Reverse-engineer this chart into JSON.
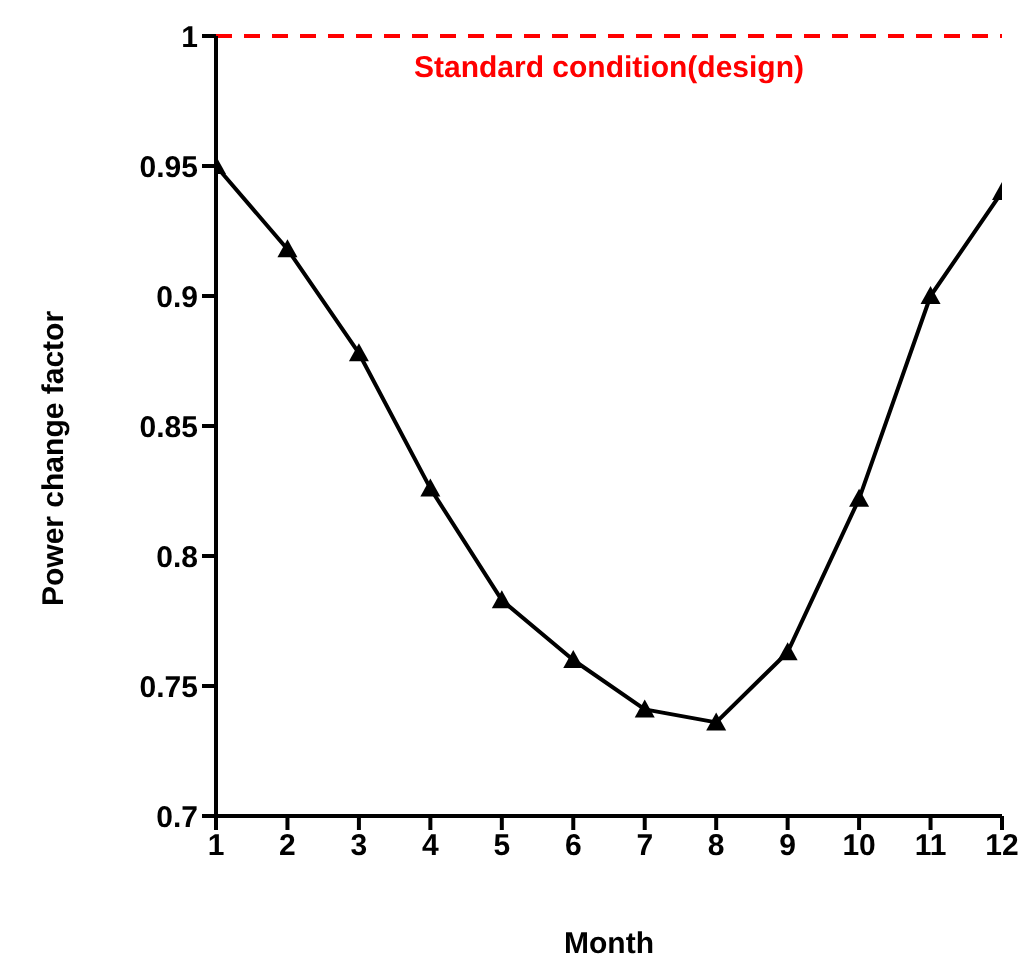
{
  "chart_data": {
    "type": "line",
    "xlabel": "Month",
    "ylabel": "Power change factor",
    "x": [
      1,
      2,
      3,
      4,
      5,
      6,
      7,
      8,
      9,
      10,
      11,
      12
    ],
    "series": [
      {
        "color": "#000000",
        "values": [
          0.95,
          0.918,
          0.878,
          0.826,
          0.783,
          0.76,
          0.741,
          0.736,
          0.763,
          0.822,
          0.9,
          0.94
        ]
      }
    ],
    "xlim": [
      1,
      12
    ],
    "xticks": [
      1,
      2,
      3,
      4,
      5,
      6,
      7,
      8,
      9,
      10,
      11,
      12
    ],
    "ylim": [
      0.7,
      1
    ],
    "yticks": [
      0.7,
      0.75,
      0.8,
      0.85,
      0.9,
      0.95,
      1
    ],
    "ref_lines": [
      {
        "axis": "y",
        "value": 1,
        "label": "Standard condition(design)",
        "color": "#ff0000",
        "line_style": "dashed"
      }
    ],
    "grid": false,
    "legend": false,
    "marker": "triangle",
    "line_style": "solid"
  }
}
